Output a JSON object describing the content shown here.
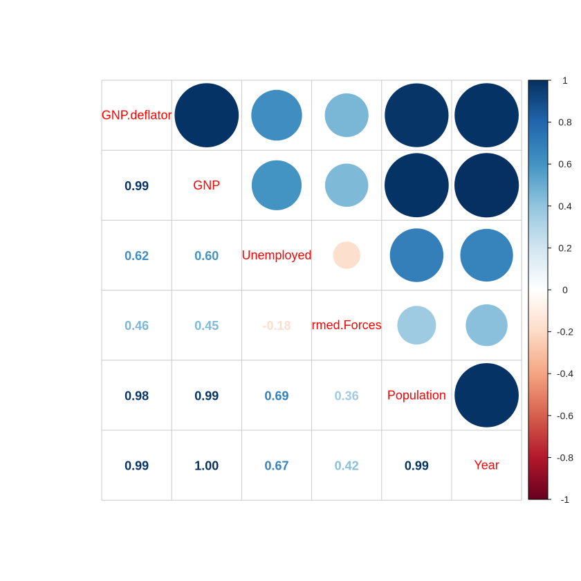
{
  "chart_data": {
    "type": "heatmap",
    "variables": [
      "GNP.deflator",
      "GNP",
      "Unemployed",
      "Armed.Forces",
      "Population",
      "Year"
    ],
    "diagonal_labels": [
      "GNP.deflator",
      "GNP",
      "Unemployed",
      "rmed.Forces",
      "Population",
      "Year"
    ],
    "matrix": [
      [
        1.0,
        0.99,
        0.62,
        0.46,
        0.98,
        0.99
      ],
      [
        0.99,
        1.0,
        0.6,
        0.45,
        0.99,
        1.0
      ],
      [
        0.62,
        0.6,
        1.0,
        -0.18,
        0.69,
        0.67
      ],
      [
        0.46,
        0.45,
        -0.18,
        1.0,
        0.36,
        0.42
      ],
      [
        0.98,
        0.99,
        0.69,
        0.36,
        1.0,
        0.99
      ],
      [
        0.99,
        1.0,
        0.67,
        0.42,
        0.99,
        1.0
      ]
    ],
    "lower_labels": [
      [
        null,
        null,
        null,
        null,
        null,
        null
      ],
      [
        "0.99",
        null,
        null,
        null,
        null,
        null
      ],
      [
        "0.62",
        "0.60",
        null,
        null,
        null,
        null
      ],
      [
        "0.46",
        "0.45",
        "-0.18",
        null,
        null,
        null
      ],
      [
        "0.98",
        "0.99",
        "0.69",
        "0.36",
        null,
        null
      ],
      [
        "0.99",
        "1.00",
        "0.67",
        "0.42",
        "0.99",
        null
      ]
    ],
    "upper_method": "circle",
    "lower_method": "number",
    "colorbar": {
      "range": [
        -1,
        1
      ],
      "ticks": [
        "1",
        "0.8",
        "0.6",
        "0.4",
        "0.2",
        "0",
        "-0.2",
        "-0.4",
        "-0.6",
        "-0.8",
        "-1"
      ]
    },
    "label_color": "#FF0000",
    "palette": [
      "#67001F",
      "#B2182B",
      "#D6604D",
      "#F4A582",
      "#FDDBC7",
      "#FFFFFF",
      "#D1E5F0",
      "#92C5DE",
      "#4393C3",
      "#2166AC",
      "#053061"
    ]
  }
}
